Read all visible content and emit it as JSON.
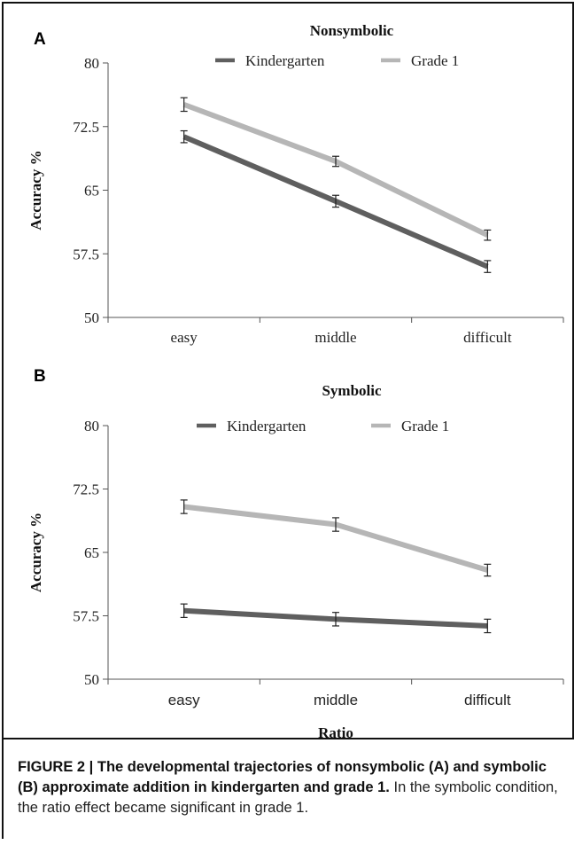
{
  "chart_data": [
    {
      "type": "line",
      "panel": "A",
      "title": "Nonsymbolic",
      "xlabel": "",
      "ylabel": "Accuracy %",
      "categories": [
        "easy",
        "middle",
        "difficult"
      ],
      "ylim": [
        50,
        80
      ],
      "yticks": [
        "80",
        "72.5",
        "65",
        "57.5",
        "50"
      ],
      "legend_position": "top",
      "series": [
        {
          "name": "Kindergarten",
          "color": "#5f5f5f",
          "values": [
            71.3,
            63.7,
            56.0
          ],
          "error": [
            0.7,
            0.7,
            0.7
          ]
        },
        {
          "name": "Grade 1",
          "color": "#b6b6b6",
          "values": [
            75.1,
            68.4,
            59.7
          ],
          "error": [
            0.8,
            0.6,
            0.6
          ]
        }
      ]
    },
    {
      "type": "line",
      "panel": "B",
      "title": "Symbolic",
      "xlabel": "Ratio",
      "ylabel": "Accuracy %",
      "categories": [
        "easy",
        "middle",
        "difficult"
      ],
      "ylim": [
        50,
        80
      ],
      "yticks": [
        "80",
        "72.5",
        "65",
        "57.5",
        "50"
      ],
      "legend_position": "top",
      "series": [
        {
          "name": "Kindergarten",
          "color": "#5f5f5f",
          "values": [
            58.1,
            57.1,
            56.3
          ],
          "error": [
            0.8,
            0.8,
            0.8
          ]
        },
        {
          "name": "Grade 1",
          "color": "#b6b6b6",
          "values": [
            70.4,
            68.3,
            62.9
          ],
          "error": [
            0.8,
            0.8,
            0.7
          ]
        }
      ]
    }
  ],
  "caption": {
    "bold": "FIGURE 2 | The developmental trajectories of nonsymbolic (A) and symbolic (B) approximate addition in kindergarten and grade 1.",
    "text": " In the symbolic condition, the ratio effect became significant in grade 1."
  }
}
